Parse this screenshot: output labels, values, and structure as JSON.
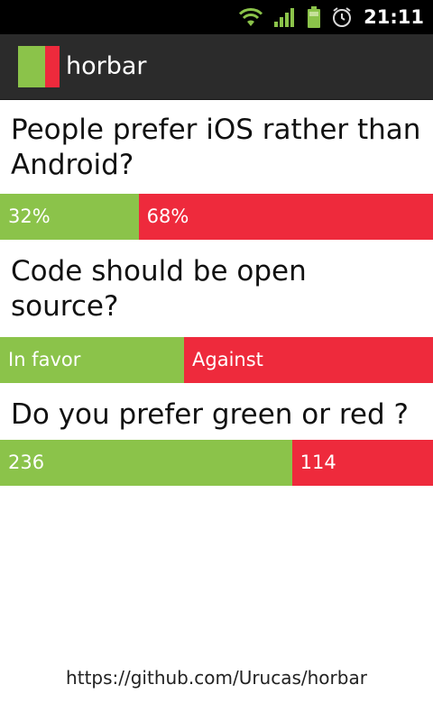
{
  "status_bar": {
    "time": "21:11",
    "icons": [
      "wifi-icon",
      "signal-icon",
      "battery-icon",
      "alarm-icon"
    ]
  },
  "app": {
    "title": "horbar"
  },
  "colors": {
    "green": "#8bc34a",
    "red": "#ee2a3c"
  },
  "bars": [
    {
      "question": "People prefer iOS rather than Android?",
      "left": {
        "label": "32%",
        "value": 32
      },
      "right": {
        "label": "68%",
        "value": 68
      }
    },
    {
      "question": "Code should be open source?",
      "left": {
        "label": "In favor",
        "value": 42.5
      },
      "right": {
        "label": "Against",
        "value": 57.5
      }
    },
    {
      "question": "Do you prefer green or red ?",
      "left": {
        "label": "236",
        "value": 236
      },
      "right": {
        "label": "114",
        "value": 114
      }
    }
  ],
  "footer": {
    "link": "https://github.com/Urucas/horbar"
  }
}
